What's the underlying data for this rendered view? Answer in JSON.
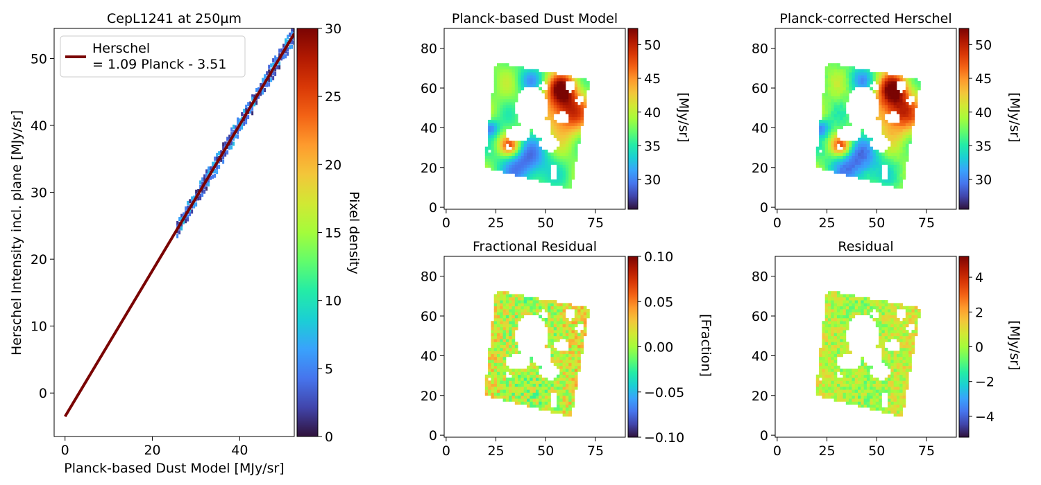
{
  "colors": {
    "line": "#7a0403",
    "axis": "#000000",
    "background": "#ffffff",
    "turbo": [
      "#30123b",
      "#4145ab",
      "#4675ed",
      "#39a2fc",
      "#1bcfd4",
      "#24eca6",
      "#61fc6c",
      "#a4fc3b",
      "#d1e834",
      "#f3c63a",
      "#fe9b2d",
      "#f36315",
      "#d93806",
      "#b11901",
      "#7a0403"
    ]
  },
  "chart_data": [
    {
      "type": "scatter",
      "title": "CepL1241 at 250µm",
      "xlabel": "Planck-based Dust Model [MJy/sr]",
      "ylabel": "Herschel Intensity incl. plane [MJy/sr]",
      "xlim": [
        -2.5,
        52.5
      ],
      "ylim": [
        -6.5,
        54.5
      ],
      "xticks": [
        "0",
        "20",
        "40"
      ],
      "xtick_values": [
        0,
        20,
        40
      ],
      "yticks": [
        "0",
        "10",
        "20",
        "30",
        "40",
        "50"
      ],
      "ytick_values": [
        0,
        10,
        20,
        30,
        40,
        50
      ],
      "legend": {
        "position": "top-left",
        "label_line1": "Herschel",
        "label_line2": "= 1.09 Planck - 3.51"
      },
      "fit": {
        "slope": 1.09,
        "intercept": -3.51,
        "x": [
          0,
          52.5
        ]
      },
      "density_band": {
        "x_range": [
          25.5,
          52.5
        ],
        "density_range": [
          1,
          8
        ]
      },
      "colorbar": {
        "label": "Pixel density",
        "range": [
          0,
          30
        ],
        "ticks": [
          "0",
          "5",
          "10",
          "15",
          "20",
          "25",
          "30"
        ],
        "tick_values": [
          0,
          5,
          10,
          15,
          20,
          25,
          30
        ]
      }
    },
    {
      "type": "heatmap",
      "title": "Planck-based Dust Model",
      "xlim": [
        -1,
        90
      ],
      "ylim": [
        -1,
        90
      ],
      "xticks": [
        "0",
        "25",
        "50",
        "75"
      ],
      "xtick_values": [
        0,
        25,
        50,
        75
      ],
      "yticks": [
        "0",
        "20",
        "40",
        "60",
        "80"
      ],
      "ytick_values": [
        0,
        20,
        40,
        60,
        80
      ],
      "colorbar": {
        "label": "[MJy/sr]",
        "range": [
          25.6,
          52.4
        ],
        "ticks": [
          "30",
          "35",
          "40",
          "45",
          "50"
        ],
        "tick_values": [
          30,
          35,
          40,
          45,
          50
        ]
      },
      "value_range": [
        26,
        52
      ]
    },
    {
      "type": "heatmap",
      "title": "Planck-corrected Herschel",
      "xlim": [
        -1,
        90
      ],
      "ylim": [
        -1,
        90
      ],
      "xticks": [
        "0",
        "25",
        "50",
        "75"
      ],
      "xtick_values": [
        0,
        25,
        50,
        75
      ],
      "yticks": [
        "0",
        "20",
        "40",
        "60",
        "80"
      ],
      "ytick_values": [
        0,
        20,
        40,
        60,
        80
      ],
      "colorbar": {
        "label": "[MJy/sr]",
        "range": [
          25.6,
          52.4
        ],
        "ticks": [
          "30",
          "35",
          "40",
          "45",
          "50"
        ],
        "tick_values": [
          30,
          35,
          40,
          45,
          50
        ]
      },
      "value_range": [
        26,
        52
      ]
    },
    {
      "type": "heatmap",
      "title": "Fractional Residual",
      "xlim": [
        -1,
        90
      ],
      "ylim": [
        -1,
        90
      ],
      "xticks": [
        "0",
        "25",
        "50",
        "75"
      ],
      "xtick_values": [
        0,
        25,
        50,
        75
      ],
      "yticks": [
        "0",
        "20",
        "40",
        "60",
        "80"
      ],
      "ytick_values": [
        0,
        20,
        40,
        60,
        80
      ],
      "colorbar": {
        "label": "[Fraction]",
        "range": [
          -0.1,
          0.1
        ],
        "ticks": [
          "0.10",
          "0.05",
          "0.00",
          "−0.05",
          "−0.10"
        ],
        "tick_values": [
          0.1,
          0.05,
          0.0,
          -0.05,
          -0.1
        ]
      },
      "value_range": [
        -0.02,
        0.04
      ]
    },
    {
      "type": "heatmap",
      "title": "Residual",
      "xlim": [
        -1,
        90
      ],
      "ylim": [
        -1,
        90
      ],
      "xticks": [
        "0",
        "25",
        "50",
        "75"
      ],
      "xtick_values": [
        0,
        25,
        50,
        75
      ],
      "yticks": [
        "0",
        "20",
        "40",
        "60",
        "80"
      ],
      "ytick_values": [
        0,
        20,
        40,
        60,
        80
      ],
      "colorbar": {
        "label": "[MJy/sr]",
        "range": [
          -5.2,
          5.2
        ],
        "ticks": [
          "4",
          "2",
          "0",
          "−2",
          "−4"
        ],
        "tick_values": [
          4,
          2,
          0,
          -2,
          -4
        ]
      },
      "value_range": [
        -0.8,
        1.5
      ]
    }
  ]
}
